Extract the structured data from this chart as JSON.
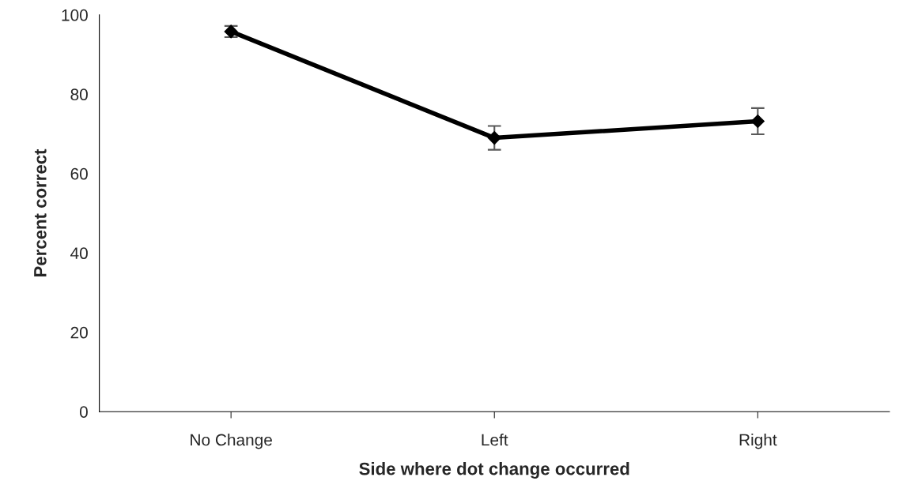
{
  "chart_data": {
    "type": "line",
    "xlabel": "Side where dot change occurred",
    "ylabel": "Percent correct",
    "categories": [
      "No Change",
      "Left",
      "Right"
    ],
    "series": [
      {
        "color": "#000000",
        "values": [
          95.8,
          69.0,
          73.2
        ],
        "errors": [
          1.4,
          3.0,
          3.3
        ]
      }
    ],
    "ylim": [
      0,
      100
    ],
    "yticks": [
      0,
      20,
      40,
      60,
      80,
      100
    ],
    "grid": false,
    "legend": false,
    "marker": "diamond",
    "line_style": "solid"
  }
}
